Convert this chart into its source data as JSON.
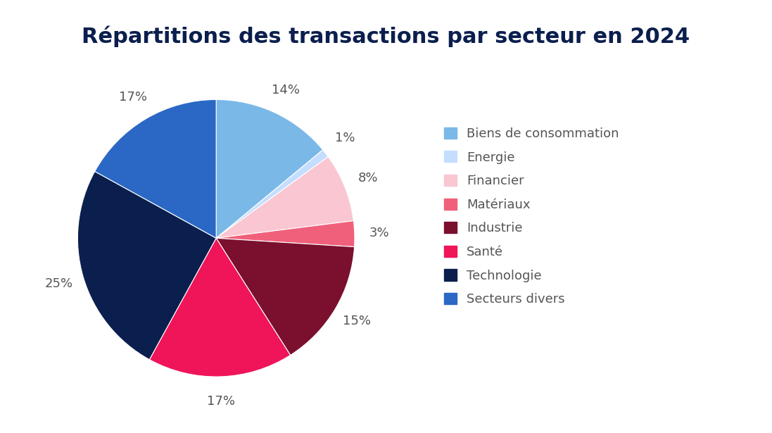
{
  "title": "Répartitions des transactions par secteur en 2024",
  "labels": [
    "Biens de consommation",
    "Energie",
    "Financier",
    "Matériaux",
    "Industrie",
    "Santé",
    "Technologie",
    "Secteurs divers"
  ],
  "values": [
    14,
    1,
    8,
    3,
    15,
    17,
    25,
    17
  ],
  "colors": [
    "#7AB8E8",
    "#C5DEFF",
    "#F9C6D2",
    "#F0607A",
    "#7A0F2E",
    "#F01459",
    "#0B1F4E",
    "#2B68C5"
  ],
  "pct_labels": [
    "14%",
    "1%",
    "8%",
    "3%",
    "15%",
    "17%",
    "25%",
    "17%"
  ],
  "title_color": "#0B1F4E",
  "title_fontsize": 22,
  "label_fontsize": 13,
  "legend_fontsize": 13,
  "background_color": "#ffffff",
  "label_color": "#555555",
  "legend_label_color": "#555555"
}
